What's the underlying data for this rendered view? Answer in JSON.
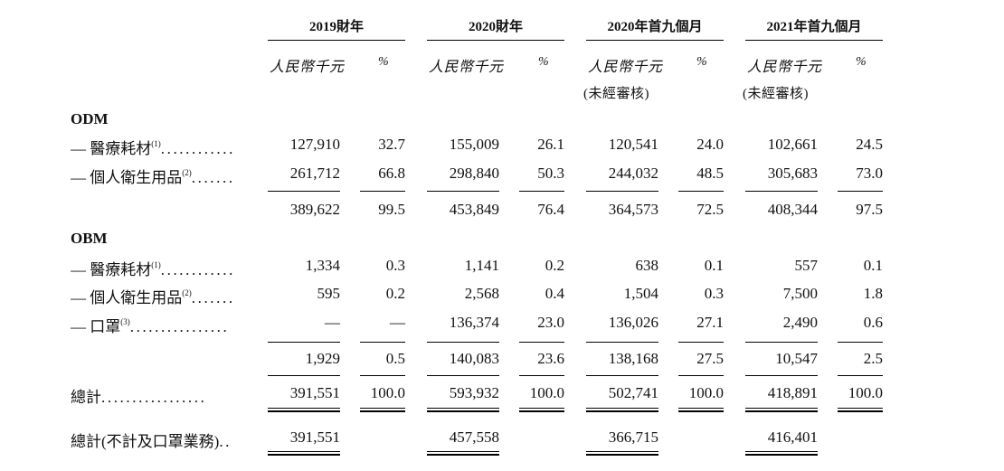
{
  "columns": {
    "fy2019": "2019財年",
    "fy2020": "2020財年",
    "nm2020": "2020年首九個月",
    "nm2021": "2021年首九個月"
  },
  "subheaders": {
    "currency": "人民幣千元",
    "percent": "%",
    "unaudited": "(未經審核)"
  },
  "sections": {
    "odm": "ODM",
    "obm": "OBM"
  },
  "labels": {
    "medical": "— 醫療耗材",
    "medical_note": "(1)",
    "medical_leader": "............",
    "hygiene": "— 個人衛生用品",
    "hygiene_note": "(2)",
    "hygiene_leader": ".......",
    "mask": "— 口罩",
    "mask_note": "(3)",
    "mask_leader": "................",
    "total": "總計",
    "total_leader": ".................",
    "total_excl": "總計(不計及口罩業務)",
    "total_excl_leader": ".."
  },
  "rows": {
    "odm_medical": [
      "127,910",
      "32.7",
      "155,009",
      "26.1",
      "120,541",
      "24.0",
      "102,661",
      "24.5"
    ],
    "odm_hygiene": [
      "261,712",
      "66.8",
      "298,840",
      "50.3",
      "244,032",
      "48.5",
      "305,683",
      "73.0"
    ],
    "odm_subtotal": [
      "389,622",
      "99.5",
      "453,849",
      "76.4",
      "364,573",
      "72.5",
      "408,344",
      "97.5"
    ],
    "obm_medical": [
      "1,334",
      "0.3",
      "1,141",
      "0.2",
      "638",
      "0.1",
      "557",
      "0.1"
    ],
    "obm_hygiene": [
      "595",
      "0.2",
      "2,568",
      "0.4",
      "1,504",
      "0.3",
      "7,500",
      "1.8"
    ],
    "obm_mask": [
      "—",
      "—",
      "136,374",
      "23.0",
      "136,026",
      "27.1",
      "2,490",
      "0.6"
    ],
    "obm_subtotal": [
      "1,929",
      "0.5",
      "140,083",
      "23.6",
      "138,168",
      "27.5",
      "10,547",
      "2.5"
    ],
    "total": [
      "391,551",
      "100.0",
      "593,932",
      "100.0",
      "502,741",
      "100.0",
      "418,891",
      "100.0"
    ],
    "total_excl": [
      "391,551",
      "457,558",
      "366,715",
      "416,401"
    ]
  }
}
